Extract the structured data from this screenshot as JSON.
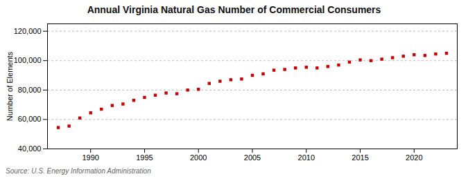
{
  "chart_data": {
    "type": "scatter",
    "title": "Annual Virginia Natural Gas Number of Commercial Consumers",
    "ylabel": "Number of Elements",
    "source": "Source: U.S. Energy Information Administration",
    "x": [
      1987,
      1988,
      1989,
      1990,
      1991,
      1992,
      1993,
      1994,
      1995,
      1996,
      1997,
      1998,
      1999,
      2000,
      2001,
      2002,
      2003,
      2004,
      2005,
      2006,
      2007,
      2008,
      2009,
      2010,
      2011,
      2012,
      2013,
      2014,
      2015,
      2016,
      2017,
      2018,
      2019,
      2020,
      2021,
      2022,
      2023
    ],
    "values": [
      54500,
      55500,
      61000,
      64500,
      67000,
      69500,
      70500,
      73000,
      75000,
      76500,
      78000,
      77500,
      80000,
      80500,
      84500,
      86000,
      87000,
      87500,
      90000,
      91000,
      93500,
      94000,
      95000,
      95500,
      95000,
      96000,
      97000,
      99000,
      100500,
      100000,
      101000,
      102000,
      103000,
      104000,
      103500,
      104500,
      105000
    ],
    "color": "#cc0000",
    "marker": "square",
    "xlim": [
      1986,
      2024
    ],
    "ylim": [
      40000,
      125000
    ],
    "xticks": [
      1990,
      1995,
      2000,
      2005,
      2010,
      2015,
      2020
    ],
    "yticks": [
      {
        "value": 40000,
        "label": "40,000"
      },
      {
        "value": 60000,
        "label": "60,000"
      },
      {
        "value": 80000,
        "label": "80,000"
      },
      {
        "value": 100000,
        "label": "100,000"
      },
      {
        "value": 120000,
        "label": "120,000"
      }
    ],
    "grid": true
  }
}
